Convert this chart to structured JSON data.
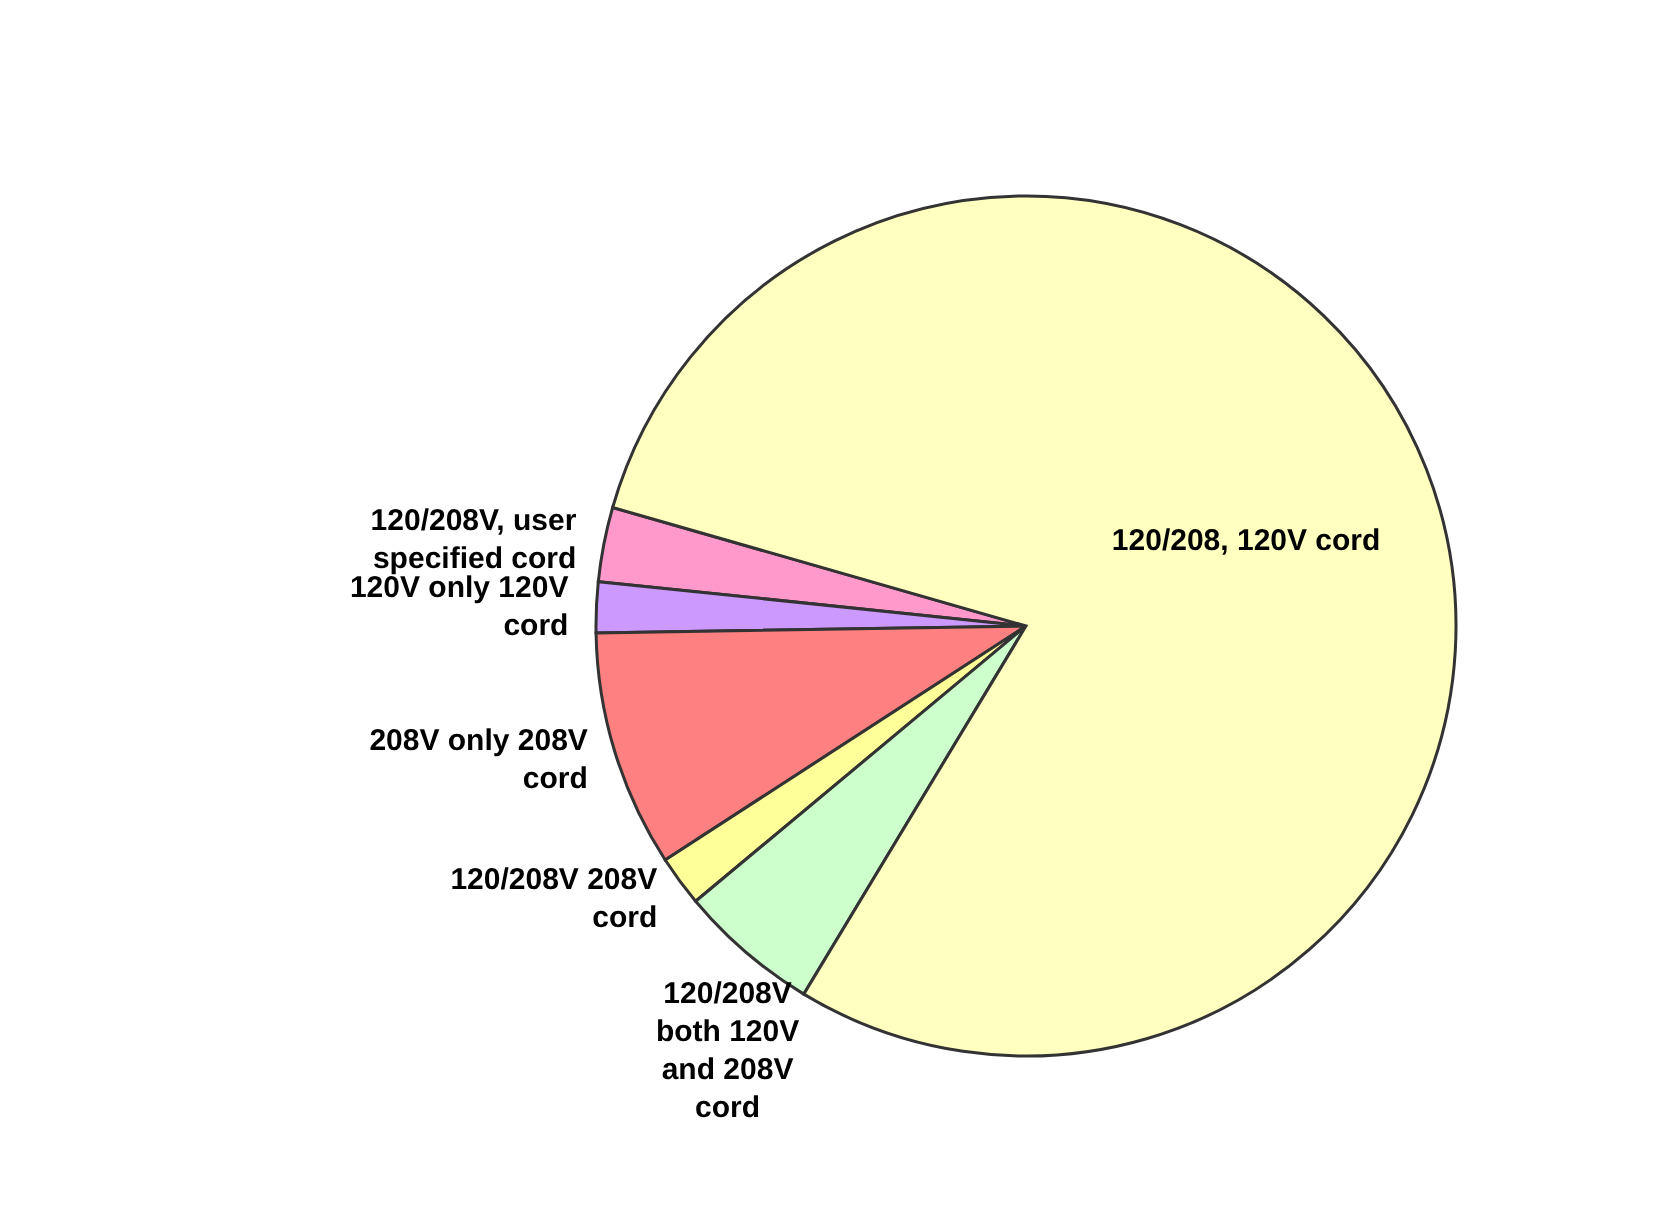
{
  "chart_data": {
    "type": "pie",
    "categories": [
      "120/208V, user specified cord",
      "120V only 120V cord",
      "208V only 208V cord",
      "120/208V 208V cord",
      "120/208V both 120V and 208V cord",
      "120/208, 120V cord"
    ],
    "values": [
      2.8,
      1.9,
      8.9,
      1.9,
      5.3,
      79.2
    ],
    "colors": [
      "#ff99cc",
      "#cc99ff",
      "#ff8080",
      "#ffff99",
      "#ccffcc",
      "#ffffc0"
    ]
  }
}
